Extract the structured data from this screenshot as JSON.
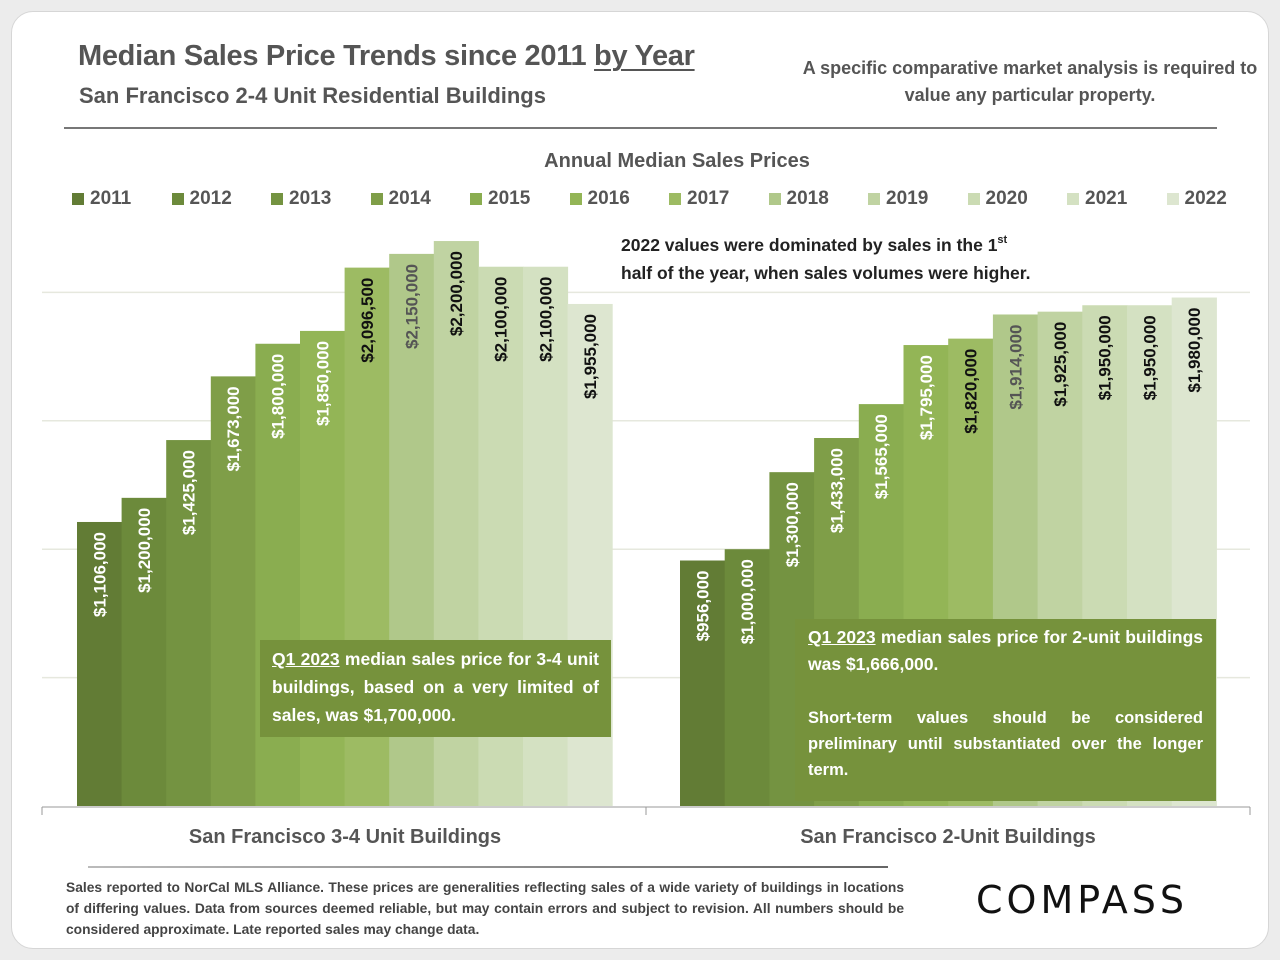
{
  "header": {
    "title_main": "Median Sales Price Trends since 2011 ",
    "title_emph": "by Year",
    "subtitle": "San Francisco 2-4 Unit Residential Buildings",
    "disclaimer": "A specific comparative market analysis is required to value any particular property."
  },
  "notes": {
    "note_2022_line1": "2022 values were dominated by sales in the 1",
    "note_2022_sup": "st",
    "note_2022_line2": "half of the year, when sales volumes were higher.",
    "callout_left_lead": "Q1 2023",
    "callout_left_text": " median sales price for 3-4 unit buildings, based on a very limited of sales, was $1,700,000.",
    "callout_right_lead": "Q1 2023",
    "callout_right_text": " median sales price for 2-unit buildings was $1,666,000.",
    "callout_right_text2": "Short-term values should be considered preliminary until substantiated over the longer term."
  },
  "footer": {
    "text": "Sales reported to NorCal MLS Alliance. These prices are generalities reflecting sales of a wide variety of buildings in locations of differing values. Data from sources deemed reliable, but may contain errors and subject to revision. All numbers  should be considered approximate.  Late reported sales may change data.",
    "logo": "COMPASS"
  },
  "chart_data": {
    "type": "bar",
    "title": "Annual Median Sales Prices",
    "xlabel": "",
    "ylabel": "",
    "ylim": [
      0,
      2500000
    ],
    "grid": true,
    "gridlines": [
      500000,
      1000000,
      1500000,
      2000000
    ],
    "legend_position": "top",
    "categories": [
      "San Francisco 3-4 Unit Buildings",
      "San Francisco 2-Unit Buildings"
    ],
    "series": [
      {
        "name": "2011",
        "color": "#627c35",
        "values": [
          1106000,
          956000
        ],
        "labels": [
          "$1,106,000",
          "$956,000"
        ]
      },
      {
        "name": "2012",
        "color": "#6c8a3b",
        "values": [
          1200000,
          1000000
        ],
        "labels": [
          "$1,200,000",
          "$1,000,000"
        ]
      },
      {
        "name": "2013",
        "color": "#749341",
        "values": [
          1425000,
          1300000
        ],
        "labels": [
          "$1,425,000",
          "$1,300,000"
        ]
      },
      {
        "name": "2014",
        "color": "#7f9e48",
        "values": [
          1673000,
          1433000
        ],
        "labels": [
          "$1,673,000",
          "$1,433,000"
        ]
      },
      {
        "name": "2015",
        "color": "#8aad50",
        "values": [
          1800000,
          1565000
        ],
        "labels": [
          "$1,800,000",
          "$1,565,000"
        ]
      },
      {
        "name": "2016",
        "color": "#93b556",
        "values": [
          1850000,
          1795000
        ],
        "labels": [
          "$1,850,000",
          "$1,795,000"
        ]
      },
      {
        "name": "2017",
        "color": "#9dbb63",
        "values": [
          2096500,
          1820000
        ],
        "labels": [
          "$2,096,500",
          "$1,820,000"
        ]
      },
      {
        "name": "2018",
        "color": "#b0c88a",
        "values": [
          2150000,
          1914000
        ],
        "labels": [
          "$2,150,000",
          "$1,914,000"
        ]
      },
      {
        "name": "2019",
        "color": "#c0d3a2",
        "values": [
          2200000,
          1925000
        ],
        "labels": [
          "$2,200,000",
          "$1,925,000"
        ]
      },
      {
        "name": "2020",
        "color": "#cbdbb3",
        "values": [
          2100000,
          1950000
        ],
        "labels": [
          "$2,100,000",
          "$1,950,000"
        ]
      },
      {
        "name": "2021",
        "color": "#d4e1c2",
        "values": [
          2100000,
          1950000
        ],
        "labels": [
          "$2,100,000",
          "$1,950,000"
        ]
      },
      {
        "name": "2022",
        "color": "#dde6d0",
        "values": [
          1955000,
          1980000
        ],
        "labels": [
          "$1,955,000",
          "$1,980,000"
        ]
      }
    ],
    "label_colors": {
      "3-4": [
        "#fff",
        "#fff",
        "#fff",
        "#fff",
        "#fff",
        "#fff",
        "#111",
        "#555",
        "#111",
        "#111",
        "#111",
        "#111"
      ],
      "2": [
        "#fff",
        "#fff",
        "#fff",
        "#fff",
        "#fff",
        "#fff",
        "#111",
        "#555",
        "#111",
        "#111",
        "#111",
        "#111"
      ]
    }
  }
}
